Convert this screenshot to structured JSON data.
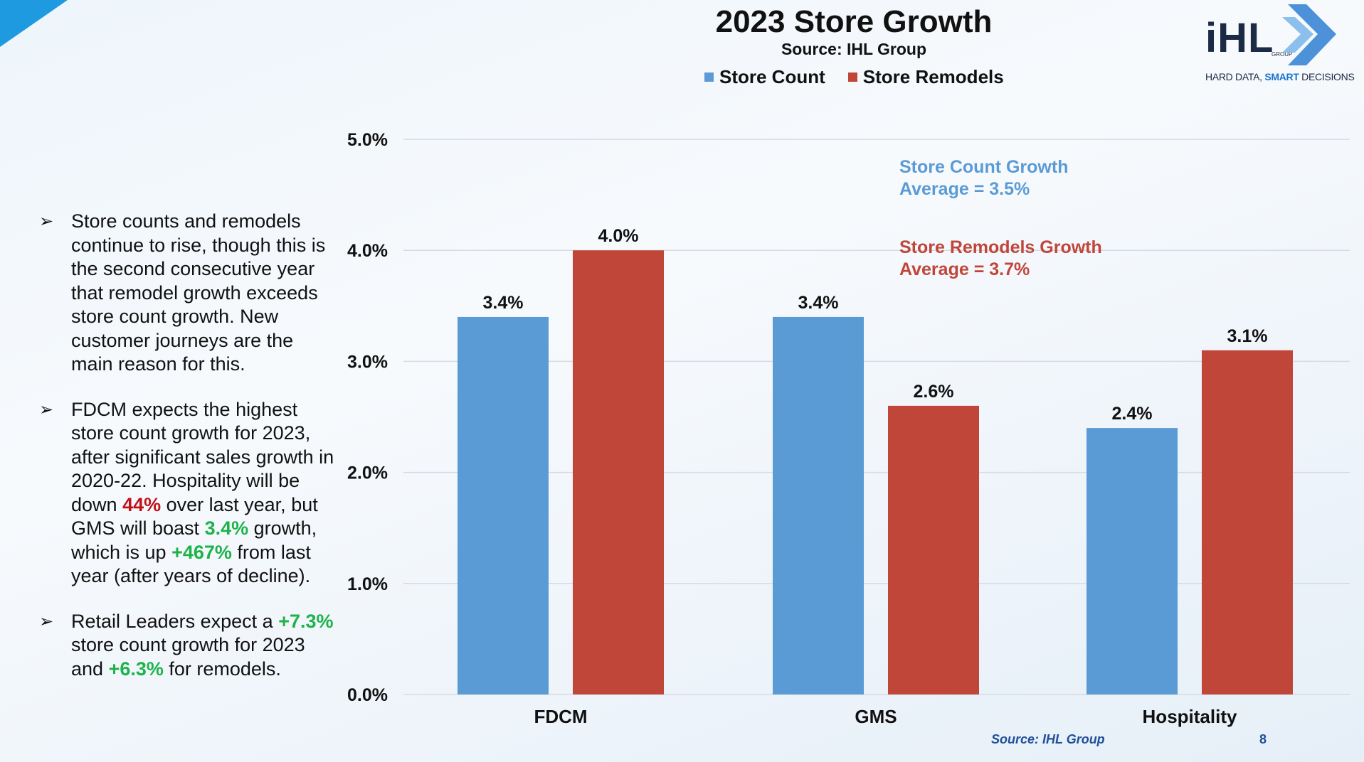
{
  "colors": {
    "store_count": "#5b9bd5",
    "store_remodels": "#c0463a"
  },
  "header": {
    "title": "2023 Store Growth",
    "subtitle": "Source: IHL Group"
  },
  "logo": {
    "word": "iHL",
    "group": "GROUP",
    "tag_start": "HARD DATA, ",
    "tag_bold": "SMART",
    "tag_end": " DECISIONS"
  },
  "bullets": {
    "b1": "Store counts and remodels continue to rise, though this is the second consecutive year that remodel growth exceeds store count growth. New customer journeys are the main reason for this.",
    "b2_p1": "FDCM expects the highest store count growth for 2023, after significant sales growth in 2020-22. Hospitality will be down ",
    "b2_v1": "44%",
    "b2_p2": " over last year, but GMS will boast ",
    "b2_v2": "3.4%",
    "b2_p3": " growth, which is up ",
    "b2_v3": "+467%",
    "b2_p4": " from last year (after years of decline).",
    "b3_p1": "Retail Leaders expect a ",
    "b3_v1": "+7.3%",
    "b3_p2": " store count growth for 2023 and ",
    "b3_v2": "+6.3%",
    "b3_p3": " for remodels."
  },
  "annotations": {
    "count_line1": "Store Count Growth",
    "count_line2": "Average = 3.5%",
    "remodel_line1": "Store Remodels Growth",
    "remodel_line2": "Average = 3.7%"
  },
  "footer": {
    "source": "Source: IHL Group",
    "page": "8"
  },
  "chart_data": {
    "type": "bar",
    "title": "2023 Store Growth",
    "subtitle": "Source: IHL Group",
    "categories": [
      "FDCM",
      "GMS",
      "Hospitality"
    ],
    "series": [
      {
        "name": "Store Count",
        "values": [
          3.4,
          3.4,
          2.4
        ],
        "labels": [
          "3.4%",
          "3.4%",
          "2.4%"
        ]
      },
      {
        "name": "Store Remodels",
        "values": [
          4.0,
          2.6,
          3.1
        ],
        "labels": [
          "4.0%",
          "2.6%",
          "3.1%"
        ]
      }
    ],
    "ylim": [
      0,
      5
    ],
    "yticks": [
      0,
      1,
      2,
      3,
      4,
      5
    ],
    "ytick_labels": [
      "0.0%",
      "1.0%",
      "2.0%",
      "3.0%",
      "4.0%",
      "5.0%"
    ],
    "grid": true,
    "legend": "top"
  }
}
